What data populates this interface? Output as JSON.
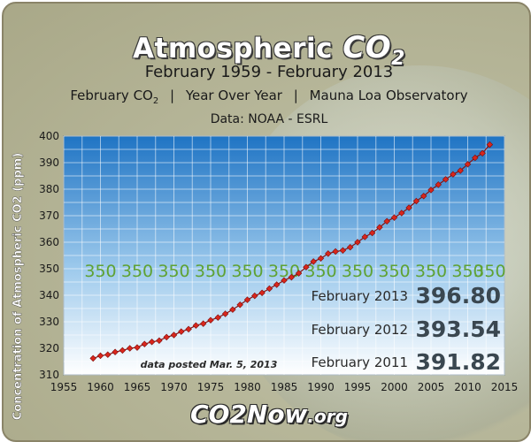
{
  "header": {
    "title_prefix": "Atmospheric",
    "title_co2": "CO",
    "title_sub": "2",
    "subtitle": "February 1959 - February 2013",
    "subline_part1": "February CO",
    "subline_part1_sub": "2",
    "subline_part2": "Year Over Year",
    "subline_part3": "Mauna Loa Observatory",
    "subline_sep": "|",
    "data_source": "Data:  NOAA - ESRL"
  },
  "footer": {
    "brand_main": "CO2Now",
    "brand_org": ".org"
  },
  "colors": {
    "plot_top": "#1f74c4",
    "plot_bottom": "#ffffff",
    "marker": "#d9261c",
    "line": "#8a1010",
    "ref_label": "#5fa233",
    "annotation_label": "#2a2a2a",
    "annotation_value": "#3a4750"
  },
  "chart_data": {
    "type": "line",
    "title": "Atmospheric CO2",
    "subtitle": "February 1959 - February 2013",
    "xlabel": "",
    "ylabel": "Concentration of Atmospheric CO2 (ppm)",
    "xlim": [
      1955,
      2015
    ],
    "ylim": [
      310,
      400
    ],
    "x_ticks": [
      1955,
      1960,
      1965,
      1970,
      1975,
      1980,
      1985,
      1990,
      1995,
      2000,
      2005,
      2010,
      2015
    ],
    "y_ticks": [
      310,
      320,
      330,
      340,
      350,
      360,
      370,
      380,
      390,
      400
    ],
    "grid": true,
    "x": [
      1959,
      1960,
      1961,
      1962,
      1963,
      1964,
      1965,
      1966,
      1967,
      1968,
      1969,
      1970,
      1971,
      1972,
      1973,
      1974,
      1975,
      1976,
      1977,
      1978,
      1979,
      1980,
      1981,
      1982,
      1983,
      1984,
      1985,
      1986,
      1987,
      1988,
      1989,
      1990,
      1991,
      1992,
      1993,
      1994,
      1995,
      1996,
      1997,
      1998,
      1999,
      2000,
      2001,
      2002,
      2003,
      2004,
      2005,
      2006,
      2007,
      2008,
      2009,
      2010,
      2011,
      2012,
      2013
    ],
    "y": [
      316.2,
      317.2,
      317.6,
      318.6,
      319.2,
      320.0,
      320.3,
      321.6,
      322.4,
      322.9,
      324.2,
      325.0,
      326.3,
      327.2,
      328.6,
      329.3,
      330.6,
      331.6,
      333.0,
      334.6,
      336.4,
      338.3,
      339.8,
      340.9,
      342.5,
      344.0,
      345.6,
      346.8,
      348.3,
      350.6,
      352.7,
      353.9,
      355.7,
      356.5,
      356.9,
      358.1,
      360.0,
      362.0,
      363.5,
      365.6,
      367.9,
      369.3,
      371.0,
      373.0,
      375.5,
      377.4,
      379.7,
      381.7,
      383.7,
      385.6,
      387.0,
      389.4,
      391.82,
      393.54,
      396.8
    ],
    "reference_line": {
      "value": 350,
      "label": "350",
      "label_years": [
        1960,
        1965,
        1970,
        1975,
        1980,
        1985,
        1990,
        1995,
        2000,
        2005,
        2010,
        2013
      ]
    },
    "annotations": [
      {
        "label": "February 2013",
        "value": "396.80"
      },
      {
        "label": "February 2012",
        "value": "393.54"
      },
      {
        "label": "February 2011",
        "value": "391.82"
      }
    ],
    "note": "data posted Mar. 5, 2013"
  }
}
